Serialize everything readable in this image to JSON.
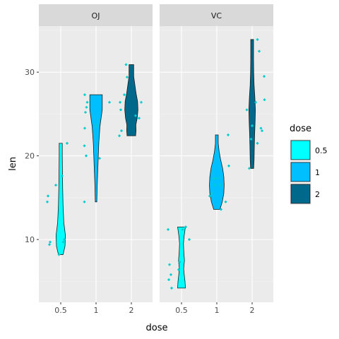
{
  "chart_data": {
    "type": "violin",
    "xlabel": "dose",
    "ylabel": "len",
    "categories": [
      "0.5",
      "1",
      "2"
    ],
    "ylim": [
      2.5,
      35.5
    ],
    "y_ticks": [
      10,
      20,
      30
    ],
    "grid": true,
    "legend": {
      "title": "dose",
      "position": "right",
      "entries": [
        {
          "label": "0.5",
          "color": "#00ffff"
        },
        {
          "label": "1",
          "color": "#00bfff"
        },
        {
          "label": "2",
          "color": "#00688b"
        }
      ]
    },
    "point_color": "#00cdcd",
    "panels": [
      {
        "label": "OJ",
        "violins": [
          {
            "dose": "0.5",
            "min": 8.2,
            "max": 21.5,
            "profile": [
              [
                8.2,
                0.3
              ],
              [
                9.2,
                0.55
              ],
              [
                10.5,
                0.6
              ],
              [
                12,
                0.4
              ],
              [
                14,
                0.3
              ],
              [
                16,
                0.25
              ],
              [
                18,
                0.22
              ],
              [
                20,
                0.2
              ],
              [
                21.5,
                0.2
              ]
            ]
          },
          {
            "dose": "1",
            "min": 14.5,
            "max": 27.3,
            "profile": [
              [
                14.5,
                0.1
              ],
              [
                16.5,
                0.15
              ],
              [
                19,
                0.25
              ],
              [
                21.5,
                0.35
              ],
              [
                23.5,
                0.5
              ],
              [
                25.5,
                0.8
              ],
              [
                27.3,
                0.8
              ]
            ]
          },
          {
            "dose": "2",
            "min": 22.4,
            "max": 30.9,
            "profile": [
              [
                22.4,
                0.55
              ],
              [
                23,
                0.6
              ],
              [
                23.7,
                0.58
              ],
              [
                24.5,
                0.75
              ],
              [
                25.5,
                0.85
              ],
              [
                26.5,
                0.8
              ],
              [
                27.5,
                0.6
              ],
              [
                28.5,
                0.45
              ],
              [
                29.5,
                0.3
              ],
              [
                30.5,
                0.3
              ],
              [
                30.9,
                0.3
              ]
            ]
          }
        ],
        "points": [
          {
            "dose": "0.5",
            "len": 15.2,
            "jitter": -0.36
          },
          {
            "dose": "0.5",
            "len": 21.5,
            "jitter": 0.18
          },
          {
            "dose": "0.5",
            "len": 17.6,
            "jitter": 0.04
          },
          {
            "dose": "0.5",
            "len": 9.7,
            "jitter": -0.3
          },
          {
            "dose": "0.5",
            "len": 14.5,
            "jitter": -0.38
          },
          {
            "dose": "0.5",
            "len": 10.0,
            "jitter": 0.1
          },
          {
            "dose": "0.5",
            "len": 8.2,
            "jitter": -0.05
          },
          {
            "dose": "0.5",
            "len": 9.4,
            "jitter": -0.32
          },
          {
            "dose": "0.5",
            "len": 16.5,
            "jitter": -0.14
          },
          {
            "dose": "0.5",
            "len": 9.7,
            "jitter": 0.07
          },
          {
            "dose": "1",
            "len": 19.7,
            "jitter": 0.1
          },
          {
            "dose": "1",
            "len": 23.3,
            "jitter": -0.32
          },
          {
            "dose": "1",
            "len": 23.6,
            "jitter": 0.0
          },
          {
            "dose": "1",
            "len": 26.4,
            "jitter": -0.25
          },
          {
            "dose": "1",
            "len": 20.0,
            "jitter": -0.28
          },
          {
            "dose": "1",
            "len": 25.2,
            "jitter": -0.3
          },
          {
            "dose": "1",
            "len": 25.8,
            "jitter": -0.27
          },
          {
            "dose": "1",
            "len": 21.2,
            "jitter": -0.33
          },
          {
            "dose": "1",
            "len": 14.5,
            "jitter": -0.33
          },
          {
            "dose": "1",
            "len": 27.3,
            "jitter": -0.32
          },
          {
            "dose": "1",
            "len": 26.4,
            "jitter": 0.38
          },
          {
            "dose": "2",
            "len": 25.5,
            "jitter": -0.3
          },
          {
            "dose": "2",
            "len": 26.4,
            "jitter": -0.32
          },
          {
            "dose": "2",
            "len": 22.4,
            "jitter": -0.34
          },
          {
            "dose": "2",
            "len": 24.5,
            "jitter": 0.22
          },
          {
            "dose": "2",
            "len": 24.8,
            "jitter": 0.12
          },
          {
            "dose": "2",
            "len": 30.9,
            "jitter": -0.15
          },
          {
            "dose": "2",
            "len": 26.4,
            "jitter": 0.28
          },
          {
            "dose": "2",
            "len": 27.3,
            "jitter": -0.2
          },
          {
            "dose": "2",
            "len": 29.4,
            "jitter": -0.12
          },
          {
            "dose": "2",
            "len": 23.0,
            "jitter": -0.28
          }
        ]
      },
      {
        "label": "VC",
        "violins": [
          {
            "dose": "0.5",
            "min": 4.2,
            "max": 11.5,
            "profile": [
              [
                4.2,
                0.5
              ],
              [
                5,
                0.45
              ],
              [
                5.8,
                0.35
              ],
              [
                6.5,
                0.28
              ],
              [
                7.5,
                0.38
              ],
              [
                8.5,
                0.3
              ],
              [
                9.5,
                0.25
              ],
              [
                10.5,
                0.35
              ],
              [
                11.5,
                0.5
              ]
            ]
          },
          {
            "dose": "1",
            "min": 13.6,
            "max": 22.5,
            "profile": [
              [
                13.6,
                0.4
              ],
              [
                14.5,
                0.7
              ],
              [
                15.5,
                0.9
              ],
              [
                16.5,
                0.95
              ],
              [
                17.5,
                0.9
              ],
              [
                18.5,
                0.75
              ],
              [
                19.5,
                0.5
              ],
              [
                20.5,
                0.3
              ],
              [
                21.5,
                0.18
              ],
              [
                22.5,
                0.18
              ]
            ]
          },
          {
            "dose": "2",
            "min": 18.5,
            "max": 33.9,
            "profile": [
              [
                18.5,
                0.2
              ],
              [
                19.5,
                0.25
              ],
              [
                21,
                0.28
              ],
              [
                22.5,
                0.32
              ],
              [
                24,
                0.38
              ],
              [
                25.5,
                0.42
              ],
              [
                27,
                0.35
              ],
              [
                28.5,
                0.25
              ],
              [
                30,
                0.2
              ],
              [
                31.5,
                0.18
              ],
              [
                33.9,
                0.18
              ]
            ]
          }
        ],
        "points": [
          {
            "dose": "0.5",
            "len": 4.2,
            "jitter": -0.28
          },
          {
            "dose": "0.5",
            "len": 11.5,
            "jitter": 0.12
          },
          {
            "dose": "0.5",
            "len": 7.3,
            "jitter": -0.05
          },
          {
            "dose": "0.5",
            "len": 5.8,
            "jitter": -0.3
          },
          {
            "dose": "0.5",
            "len": 6.4,
            "jitter": -0.08
          },
          {
            "dose": "0.5",
            "len": 10.0,
            "jitter": 0.22
          },
          {
            "dose": "0.5",
            "len": 11.2,
            "jitter": -0.38
          },
          {
            "dose": "0.5",
            "len": 11.2,
            "jitter": 0.03
          },
          {
            "dose": "0.5",
            "len": 5.2,
            "jitter": -0.36
          },
          {
            "dose": "0.5",
            "len": 7.0,
            "jitter": -0.34
          },
          {
            "dose": "1",
            "len": 16.5,
            "jitter": -0.05
          },
          {
            "dose": "1",
            "len": 16.5,
            "jitter": 0.1
          },
          {
            "dose": "1",
            "len": 15.2,
            "jitter": -0.2
          },
          {
            "dose": "1",
            "len": 17.3,
            "jitter": 0.02
          },
          {
            "dose": "1",
            "len": 22.5,
            "jitter": 0.32
          },
          {
            "dose": "1",
            "len": 17.3,
            "jitter": -0.08
          },
          {
            "dose": "1",
            "len": 13.6,
            "jitter": 0.12
          },
          {
            "dose": "1",
            "len": 14.5,
            "jitter": 0.25
          },
          {
            "dose": "1",
            "len": 18.8,
            "jitter": 0.34
          },
          {
            "dose": "1",
            "len": 15.5,
            "jitter": -0.15
          },
          {
            "dose": "2",
            "len": 23.6,
            "jitter": 0.0
          },
          {
            "dose": "2",
            "len": 18.5,
            "jitter": -0.08
          },
          {
            "dose": "2",
            "len": 33.9,
            "jitter": 0.15
          },
          {
            "dose": "2",
            "len": 25.5,
            "jitter": -0.15
          },
          {
            "dose": "2",
            "len": 26.4,
            "jitter": 0.1
          },
          {
            "dose": "2",
            "len": 32.5,
            "jitter": 0.2
          },
          {
            "dose": "2",
            "len": 26.7,
            "jitter": 0.35
          },
          {
            "dose": "2",
            "len": 21.5,
            "jitter": 0.15
          },
          {
            "dose": "2",
            "len": 23.3,
            "jitter": 0.25
          },
          {
            "dose": "2",
            "len": 29.5,
            "jitter": 0.34
          },
          {
            "dose": "2",
            "len": 23.0,
            "jitter": 0.28
          },
          {
            "dose": "2",
            "len": 22.0,
            "jitter": -0.03
          }
        ]
      }
    ]
  }
}
